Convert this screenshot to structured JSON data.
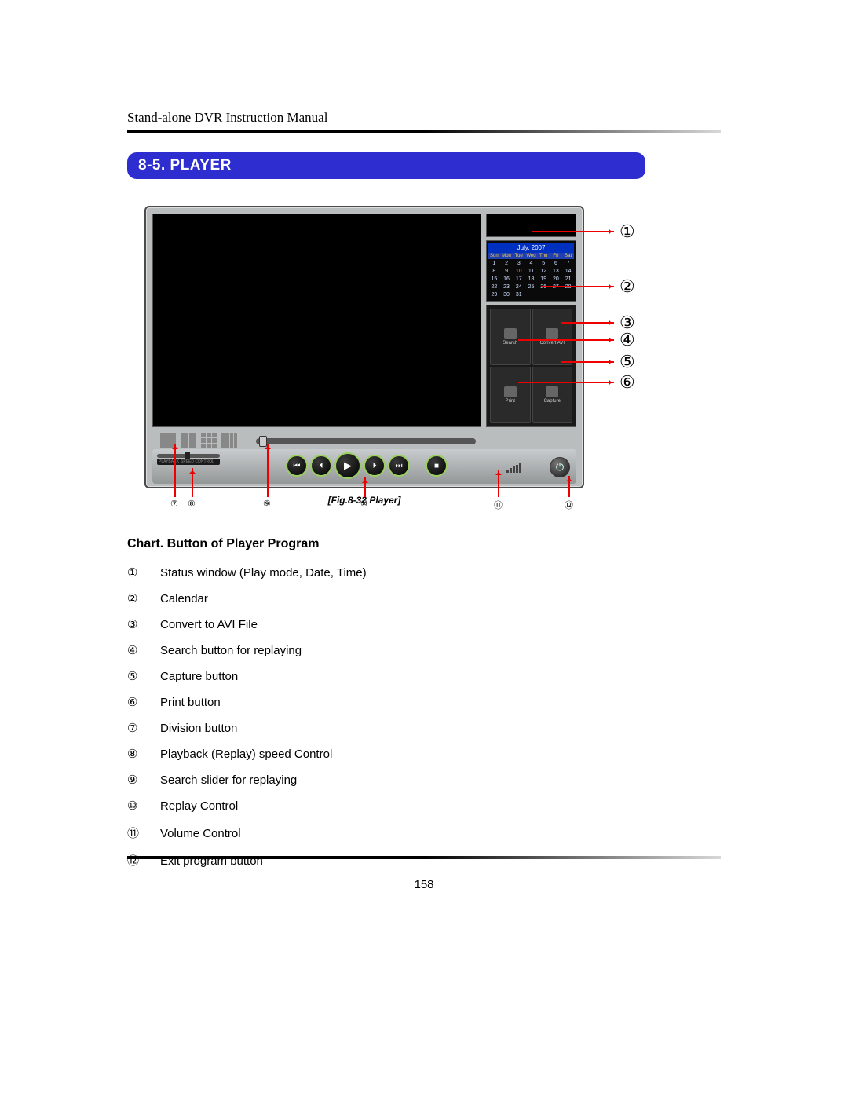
{
  "header": {
    "title": "Stand-alone DVR Instruction Manual"
  },
  "section": {
    "number_title": "8-5. PLAYER"
  },
  "figure": {
    "caption": "[Fig.8-32 Player]",
    "calendar": {
      "month_label": "July. 2007",
      "day_headers": [
        "Sun",
        "Mon",
        "Tue",
        "Wed",
        "Thu",
        "Fri",
        "Sat"
      ],
      "weeks": [
        [
          "1",
          "2",
          "3",
          "4",
          "5",
          "6",
          "7"
        ],
        [
          "8",
          "9",
          "10",
          "11",
          "12",
          "13",
          "14"
        ],
        [
          "15",
          "16",
          "17",
          "18",
          "19",
          "20",
          "21"
        ],
        [
          "22",
          "23",
          "24",
          "25",
          "26",
          "27",
          "28"
        ],
        [
          "29",
          "30",
          "31",
          "",
          "",
          "",
          ""
        ]
      ],
      "selected": "10"
    },
    "tools": {
      "search": "Search",
      "convert": "Convert AVI",
      "print": "Print",
      "capture": "Capture"
    },
    "speed_labels": {
      "a": "PLAYBACK",
      "b": "SPEED CONTROL"
    },
    "right_callouts": [
      "①",
      "②",
      "③",
      "④",
      "⑤",
      "⑥"
    ],
    "bottom_callouts": [
      "⑦",
      "⑧",
      "⑨",
      "⑩",
      "⑪",
      "⑫"
    ]
  },
  "chart": {
    "title": "Chart. Button of Player Program",
    "items": [
      {
        "num": "①",
        "desc": "Status window (Play mode, Date, Time)"
      },
      {
        "num": "②",
        "desc": "Calendar"
      },
      {
        "num": "③",
        "desc": "Convert to AVI File"
      },
      {
        "num": "④",
        "desc": "Search button for replaying"
      },
      {
        "num": "⑤",
        "desc": "Capture button"
      },
      {
        "num": "⑥",
        "desc": "Print button"
      },
      {
        "num": "⑦",
        "desc": "Division button"
      },
      {
        "num": "⑧",
        "desc": "Playback (Replay) speed Control"
      },
      {
        "num": "⑨",
        "desc": "Search slider for replaying"
      },
      {
        "num": "⑩",
        "desc": "Replay Control"
      },
      {
        "num": "⑪",
        "desc": "Volume Control"
      },
      {
        "num": "⑫",
        "desc": "Exit program button"
      }
    ]
  },
  "page_number": "158",
  "colors": {
    "section_bar_bg": "#2e2ed0",
    "accent_red": "#e00000"
  }
}
